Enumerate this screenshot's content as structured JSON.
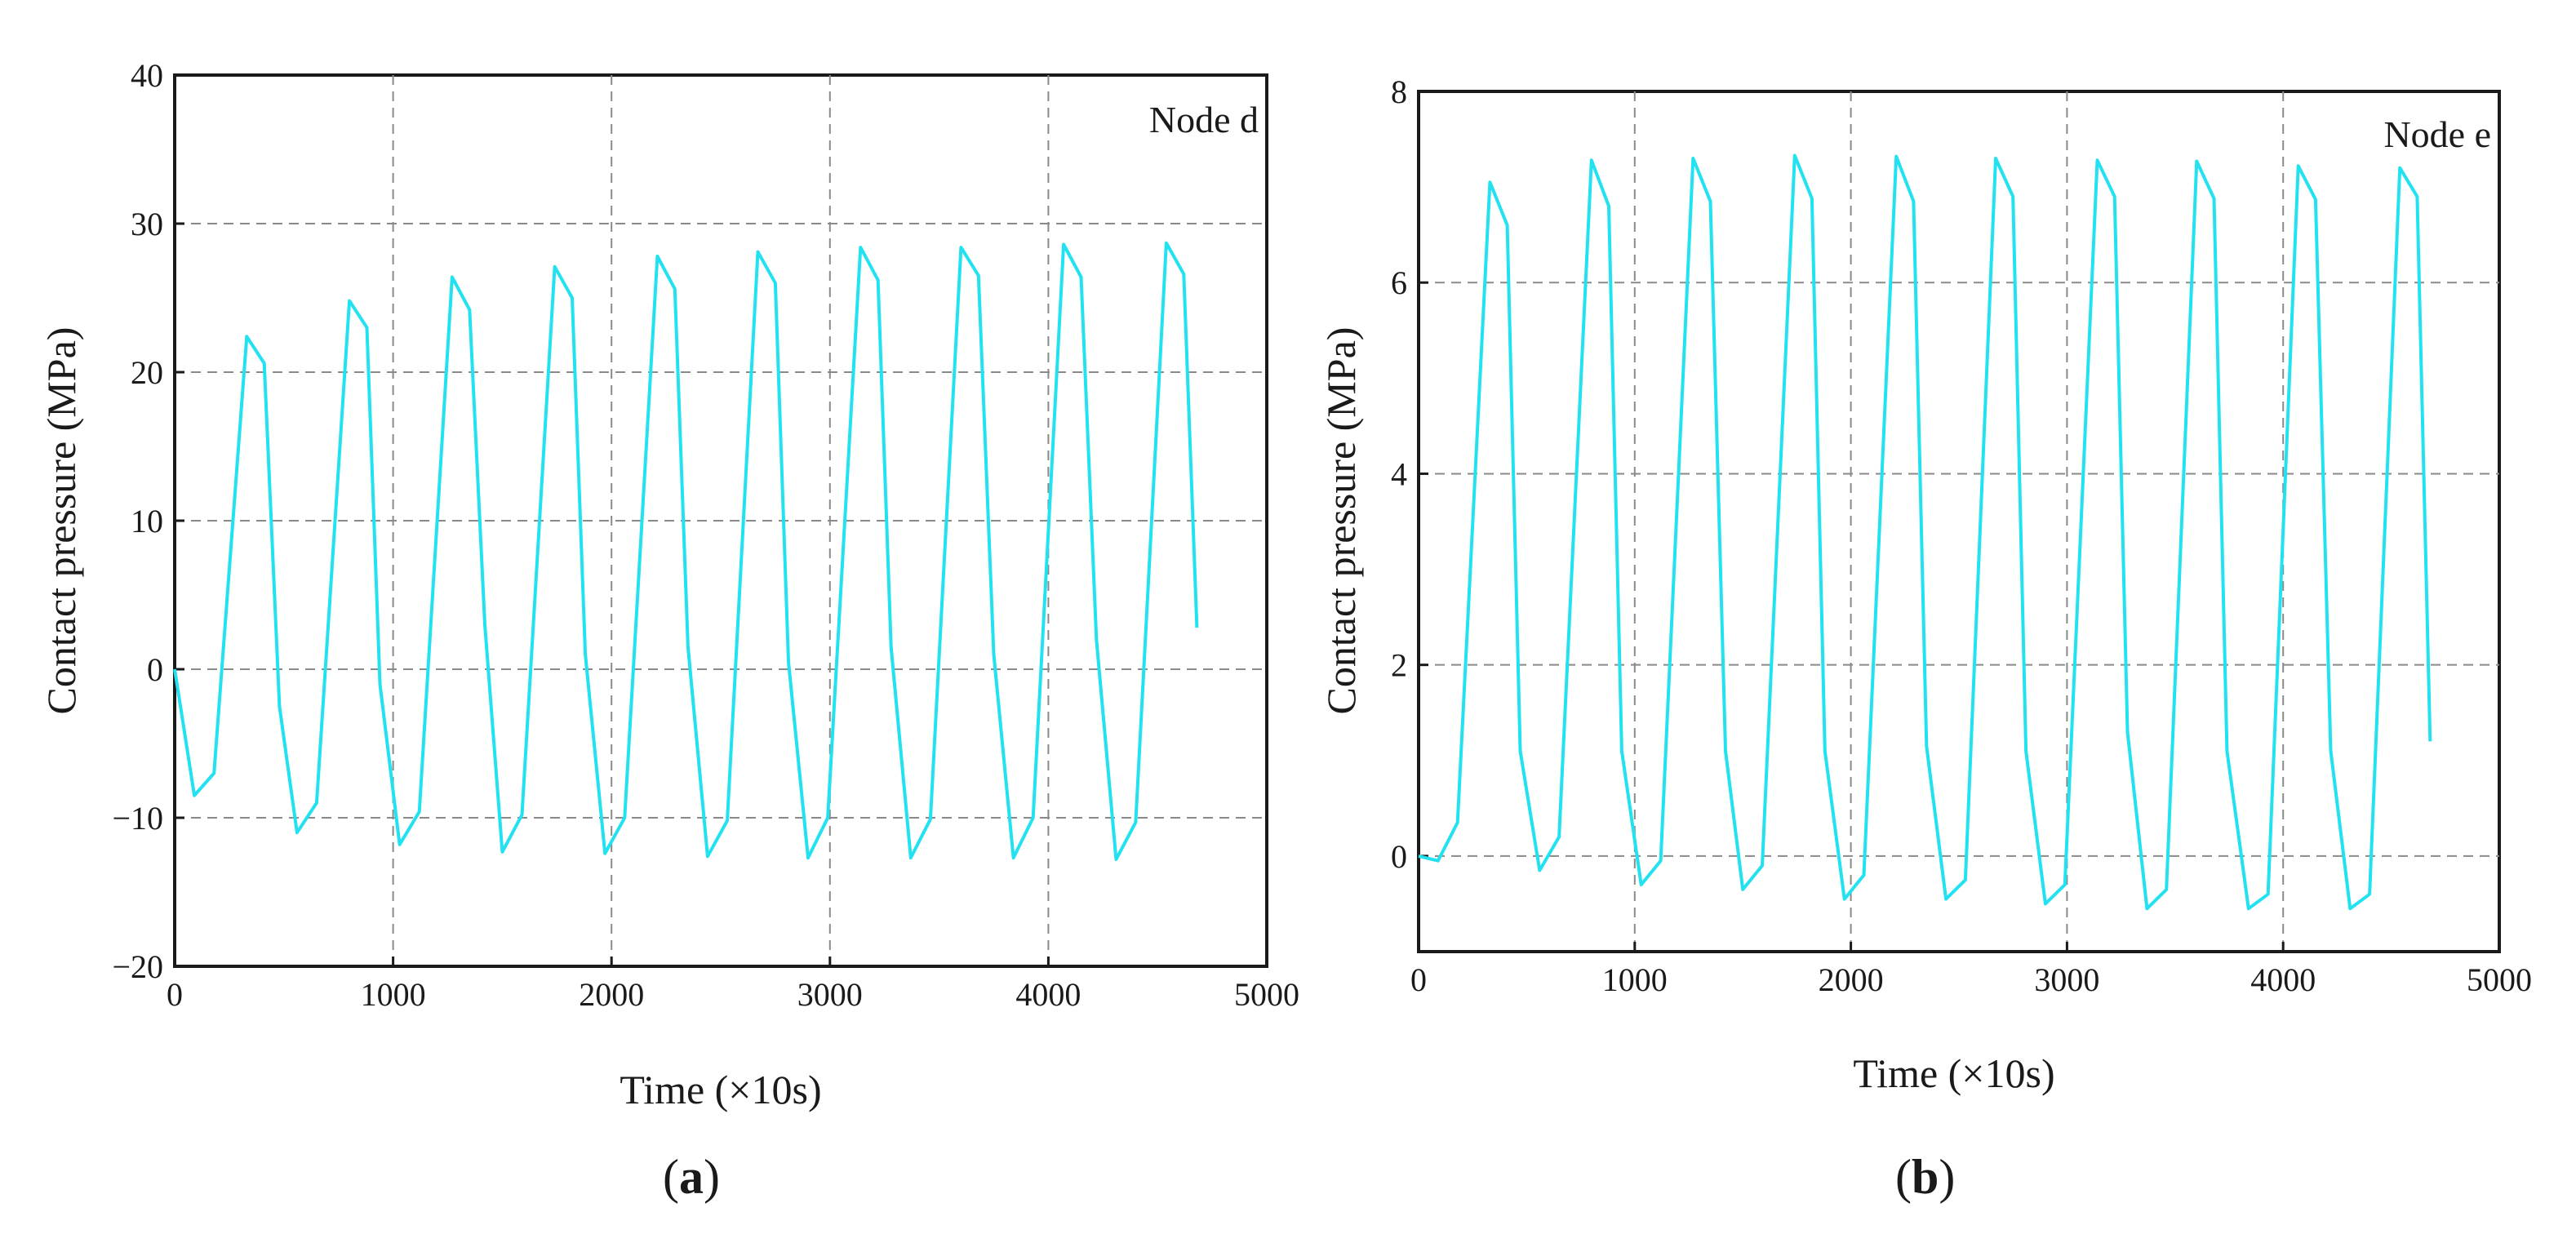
{
  "chart_data": [
    {
      "type": "line",
      "panel_label": "(a)",
      "panel_letter": "a",
      "node_label": "Node d",
      "xlabel": "Time (×10s)",
      "ylabel": "Contact pressure (MPa)",
      "xlim": [
        0,
        5000
      ],
      "ylim": [
        -20,
        40
      ],
      "xticks": [
        0,
        1000,
        2000,
        3000,
        4000,
        5000
      ],
      "xtick_labels": [
        "0",
        "1000",
        "2000",
        "3000",
        "4000",
        "5000"
      ],
      "yticks": [
        -20,
        -10,
        0,
        10,
        20,
        30,
        40
      ],
      "ytick_labels": [
        "−20",
        "−10",
        "0",
        "10",
        "20",
        "30",
        "40"
      ],
      "grid": true,
      "color": "#22e1f0",
      "series": [
        {
          "name": "Node d",
          "x": [
            0,
            90,
            180,
            330,
            410,
            480,
            560,
            650,
            800,
            880,
            940,
            1030,
            1120,
            1270,
            1350,
            1420,
            1500,
            1590,
            1740,
            1820,
            1880,
            1970,
            2060,
            2210,
            2290,
            2350,
            2440,
            2530,
            2670,
            2750,
            2810,
            2900,
            2990,
            3140,
            3220,
            3280,
            3370,
            3460,
            3600,
            3680,
            3750,
            3840,
            3930,
            4070,
            4150,
            4220,
            4310,
            4400,
            4540,
            4620,
            4680
          ],
          "y": [
            0,
            -8.5,
            -7,
            22.4,
            20.6,
            -2.5,
            -11,
            -9,
            24.8,
            23,
            -1,
            -11.8,
            -9.6,
            26.4,
            24.2,
            3,
            -12.3,
            -9.8,
            27.1,
            25,
            1,
            -12.4,
            -10,
            27.8,
            25.6,
            1.5,
            -12.6,
            -10.2,
            28.1,
            26,
            0.5,
            -12.7,
            -10,
            28.4,
            26.2,
            1.5,
            -12.7,
            -10.1,
            28.4,
            26.5,
            1,
            -12.7,
            -10,
            28.6,
            26.4,
            2,
            -12.8,
            -10.3,
            28.7,
            26.6,
            2.8
          ]
        }
      ]
    },
    {
      "type": "line",
      "panel_label": "(b)",
      "panel_letter": "b",
      "node_label": "Node e",
      "xlabel": "Time (×10s)",
      "ylabel": "Contact pressure (MPa)",
      "xlim": [
        0,
        5000
      ],
      "ylim": [
        -1,
        8
      ],
      "xticks": [
        0,
        1000,
        2000,
        3000,
        4000,
        5000
      ],
      "xtick_labels": [
        "0",
        "1000",
        "2000",
        "3000",
        "4000",
        "5000"
      ],
      "yticks": [
        0,
        2,
        4,
        6,
        8
      ],
      "ytick_labels": [
        "0",
        "2",
        "4",
        "6",
        "8"
      ],
      "grid": true,
      "color": "#22e1f0",
      "series": [
        {
          "name": "Node e",
          "x": [
            0,
            90,
            180,
            330,
            410,
            470,
            560,
            650,
            800,
            880,
            940,
            1030,
            1120,
            1270,
            1350,
            1420,
            1500,
            1590,
            1740,
            1820,
            1880,
            1970,
            2060,
            2210,
            2290,
            2350,
            2440,
            2530,
            2670,
            2750,
            2810,
            2900,
            2990,
            3140,
            3220,
            3280,
            3370,
            3460,
            3600,
            3680,
            3740,
            3840,
            3930,
            4070,
            4150,
            4220,
            4310,
            4400,
            4540,
            4620,
            4680
          ],
          "y": [
            0,
            -0.05,
            0.35,
            7.05,
            6.6,
            1.1,
            -0.15,
            0.2,
            7.28,
            6.8,
            1.1,
            -0.3,
            -0.05,
            7.3,
            6.85,
            1.1,
            -0.35,
            -0.1,
            7.33,
            6.88,
            1.1,
            -0.45,
            -0.2,
            7.32,
            6.85,
            1.15,
            -0.45,
            -0.25,
            7.3,
            6.9,
            1.1,
            -0.5,
            -0.3,
            7.28,
            6.9,
            1.3,
            -0.55,
            -0.35,
            7.27,
            6.88,
            1.1,
            -0.55,
            -0.4,
            7.22,
            6.87,
            1.1,
            -0.55,
            -0.4,
            7.2,
            6.9,
            1.2
          ]
        }
      ]
    }
  ]
}
